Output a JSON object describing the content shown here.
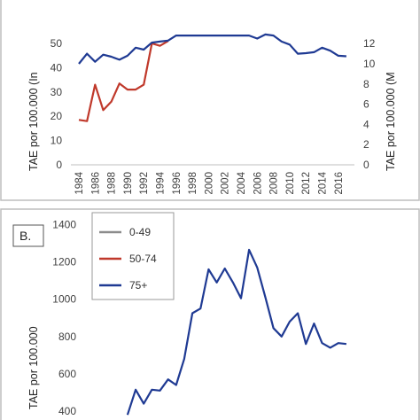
{
  "chart_data": [
    {
      "type": "line",
      "x": [
        1984,
        1985,
        1986,
        1987,
        1988,
        1989,
        1990,
        1991,
        1992,
        1993,
        1994,
        1995,
        1996,
        1997,
        1998,
        1999,
        2000,
        2001,
        2002,
        2003,
        2004,
        2005,
        2006,
        2007,
        2008,
        2009,
        2010,
        2011,
        2012,
        2013,
        2014,
        2015,
        2016,
        2017
      ],
      "xticks": [
        1984,
        1986,
        1988,
        1990,
        1992,
        1994,
        1996,
        1998,
        2000,
        2002,
        2004,
        2006,
        2008,
        2010,
        2012,
        2014,
        2016
      ],
      "ylabel_left": "TAE por 100.000 (In",
      "ylabel_right": "TAE por 100.000 (M",
      "ylim_left": [
        0,
        50
      ],
      "yticks_left": [
        0,
        10,
        20,
        30,
        40,
        50
      ],
      "ylim_right": [
        0,
        12
      ],
      "yticks_right": [
        0,
        2,
        4,
        6,
        8,
        10,
        12
      ],
      "series": [
        {
          "axis": "left",
          "color": "#c0392b",
          "x": [
            1984,
            1985,
            1986,
            1987,
            1988,
            1989,
            1990,
            1991,
            1992,
            1993,
            1994,
            1995
          ],
          "values": [
            18.5,
            18,
            33,
            22.5,
            26,
            33.5,
            31,
            31,
            33,
            50,
            49,
            51
          ]
        },
        {
          "axis": "right",
          "color": "#1f3a93",
          "x": [
            1984,
            1985,
            1986,
            1987,
            1988,
            1989,
            1990,
            1991,
            1992,
            1993,
            1994,
            1995,
            1996,
            2005,
            2006,
            2007,
            2008,
            2009,
            2010,
            2011,
            2012,
            2013,
            2014,
            2015,
            2016,
            2017
          ],
          "values": [
            10,
            11,
            10.2,
            10.9,
            10.7,
            10.4,
            10.8,
            11.6,
            11.4,
            12.1,
            12.2,
            12.3,
            12.8,
            12.8,
            12.5,
            12.9,
            12.8,
            12.2,
            11.9,
            11,
            11.05,
            11.15,
            11.6,
            11.3,
            10.8,
            10.75
          ]
        }
      ]
    },
    {
      "type": "line",
      "panel_label": "B.",
      "ylabel": "TAE por 100.000",
      "ylim": [
        400,
        1400
      ],
      "yticks": [
        400,
        600,
        800,
        1000,
        1200,
        1400
      ],
      "legend": [
        "0-49",
        "50-74",
        "75+"
      ],
      "legend_colors": [
        "#8c8c8c",
        "#c0392b",
        "#1f3a93"
      ],
      "series": [
        {
          "name": "75+",
          "color": "#1f3a93",
          "x": [
            1990,
            1991,
            1992,
            1993,
            1994,
            1995,
            1996,
            1997,
            1998,
            1999,
            2000,
            2001,
            2002,
            2003,
            2004,
            2005,
            2006,
            2007,
            2008,
            2009,
            2010,
            2011,
            2012,
            2013,
            2014,
            2015,
            2016,
            2017
          ],
          "values": [
            380,
            515,
            440,
            515,
            510,
            570,
            540,
            680,
            925,
            950,
            1160,
            1090,
            1165,
            1090,
            1005,
            1265,
            1170,
            1010,
            845,
            800,
            880,
            925,
            760,
            870,
            765,
            740,
            765,
            760
          ]
        }
      ]
    }
  ]
}
